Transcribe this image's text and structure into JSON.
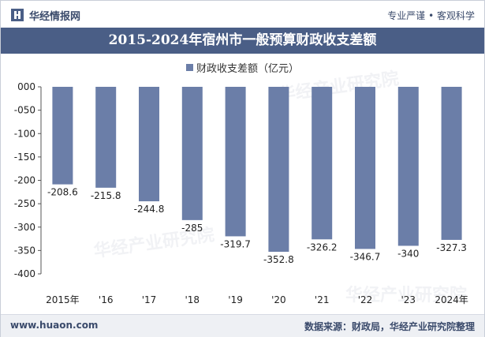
{
  "header": {
    "brand": "华经情报网",
    "tagline": "专业严谨 • 客观科学"
  },
  "chart_data": {
    "type": "bar",
    "title": "2015-2024年宿州市一般预算财政收支差额",
    "categories": [
      "2015年",
      "'16",
      "'17",
      "'18",
      "'19",
      "'20",
      "'21",
      "'22",
      "'23",
      "2024年"
    ],
    "series": [
      {
        "name": "财政收支差额（亿元）",
        "values": [
          -208.6,
          -215.8,
          -244.8,
          -285,
          -319.7,
          -352.8,
          -326.2,
          -346.7,
          -340,
          -327.3
        ],
        "value_labels": [
          "-208.6",
          "-215.8",
          "-244.8",
          "-285",
          "-319.7",
          "-352.8",
          "-326.2",
          "-346.7",
          "-340",
          "-327.3"
        ]
      }
    ],
    "yticks": [
      "000",
      "-050",
      "-100",
      "-150",
      "-200",
      "-250",
      "-300",
      "-350",
      "-400"
    ],
    "ylim": [
      -400,
      0
    ],
    "grid": false,
    "legend_position": "top-center",
    "bar_color": "#6b7ea8"
  },
  "watermark": "华经产业研究院",
  "footer": {
    "site": "www.huaon.com",
    "source": "数据来源：财政局，华经产业研究院整理"
  }
}
